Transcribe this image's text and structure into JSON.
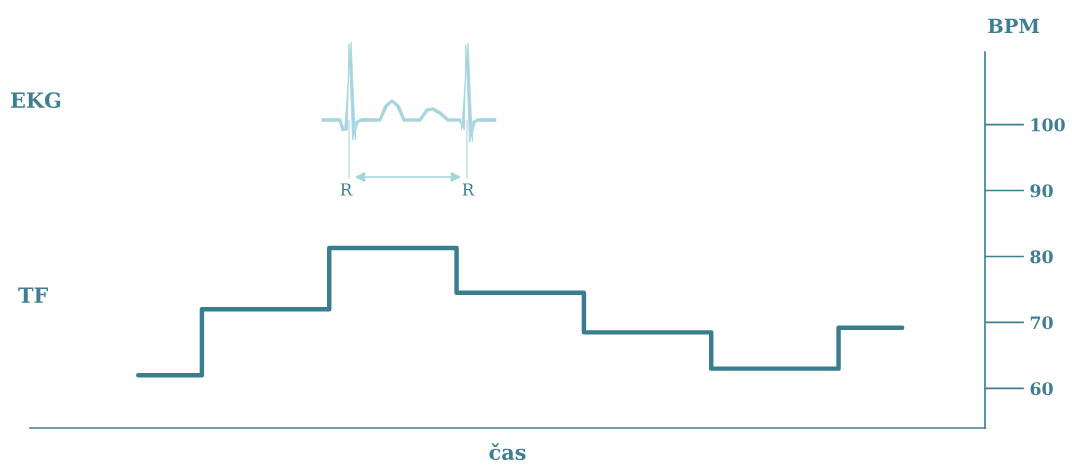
{
  "chart_data": {
    "type": "step",
    "categories": [
      null,
      null,
      null,
      null,
      null,
      null,
      null
    ],
    "series": [
      {
        "color": "#3a7d8f",
        "values": [
          62.0,
          72.0,
          81.3,
          74.5,
          68.5,
          63.0,
          69.2
        ]
      }
    ],
    "ylabel": "BPM",
    "xlabel": "čas",
    "ylim": [
      54,
      111
    ],
    "yticks": [
      60,
      70,
      80,
      90,
      100
    ],
    "annotations": [
      "EKG",
      "TF",
      "R",
      "R"
    ],
    "grid": false,
    "legend": false
  }
}
